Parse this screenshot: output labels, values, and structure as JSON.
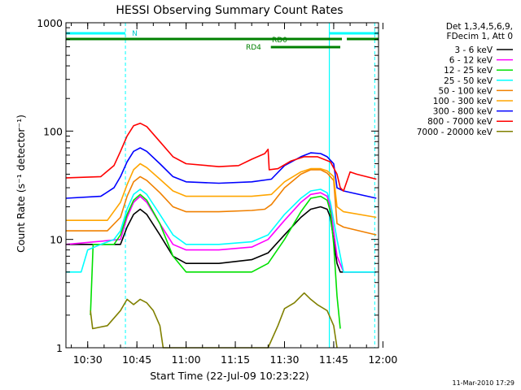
{
  "chart_data": {
    "type": "line",
    "title": "HESSI Observing Summary Count Rates",
    "xlabel": "Start Time (22-Jul-09 10:23:22)",
    "ylabel": "Count Rate (s⁻¹ detector⁻¹)",
    "y_scale": "log",
    "ylim": [
      1,
      1000
    ],
    "xlim": [
      "10:23:22",
      "11:58:40"
    ],
    "y_ticks": [
      {
        "value": 1,
        "label": "1"
      },
      {
        "value": 10,
        "label": "10"
      },
      {
        "value": 100,
        "label": "100"
      },
      {
        "value": 1000,
        "label": "1000"
      }
    ],
    "x_ticks": [
      {
        "value": "10:30",
        "label": "10:30"
      },
      {
        "value": "10:45",
        "label": "10:45"
      },
      {
        "value": "11:00",
        "label": "11:00"
      },
      {
        "value": "11:15",
        "label": "11:15"
      },
      {
        "value": "11:30",
        "label": "11:30"
      },
      {
        "value": "11:45",
        "label": "11:45"
      },
      {
        "value": "12:00",
        "label": "12:00"
      }
    ],
    "legend_header": [
      "Det 1,3,4,5,6,9,",
      "FDecim 1, Att 0"
    ],
    "legend_placement": "right",
    "series": [
      {
        "name": "3 - 6 keV",
        "color": "#000000",
        "points": [
          [
            "10:23:22",
            9
          ],
          [
            "10:40",
            9
          ],
          [
            "10:42",
            13
          ],
          [
            "10:44",
            17
          ],
          [
            "10:46",
            19
          ],
          [
            "10:48",
            17
          ],
          [
            "10:52",
            11
          ],
          [
            "10:56",
            7
          ],
          [
            "11:00",
            6
          ],
          [
            "11:05",
            6
          ],
          [
            "11:10",
            6
          ],
          [
            "11:20",
            6.5
          ],
          [
            "11:25",
            7.5
          ],
          [
            "11:30",
            11
          ],
          [
            "11:35",
            16
          ],
          [
            "11:38",
            19
          ],
          [
            "11:41",
            20
          ],
          [
            "11:43",
            19
          ],
          [
            "11:44",
            16
          ],
          [
            "11:46",
            6
          ],
          [
            "11:47",
            5
          ],
          [
            "11:48",
            5
          ],
          [
            "11:58",
            5
          ]
        ]
      },
      {
        "name": "6 - 12 keV",
        "color": "#ff00ff",
        "points": [
          [
            "10:23:22",
            9
          ],
          [
            "10:40",
            10
          ],
          [
            "10:42",
            16
          ],
          [
            "10:44",
            22
          ],
          [
            "10:46",
            25
          ],
          [
            "10:48",
            22
          ],
          [
            "10:52",
            14
          ],
          [
            "10:56",
            9
          ],
          [
            "11:00",
            8
          ],
          [
            "11:10",
            8
          ],
          [
            "11:20",
            8.5
          ],
          [
            "11:25",
            10
          ],
          [
            "11:30",
            15
          ],
          [
            "11:35",
            22
          ],
          [
            "11:38",
            26
          ],
          [
            "11:41",
            27
          ],
          [
            "11:43",
            25
          ],
          [
            "11:44",
            20
          ],
          [
            "11:46",
            7
          ],
          [
            "11:48",
            5
          ],
          [
            "11:58",
            5
          ]
        ]
      },
      {
        "name": "12 - 25 keV",
        "color": "#00e000",
        "points": [
          [
            "10:30:50",
            2
          ],
          [
            "10:31:40",
            9
          ],
          [
            "10:38",
            9
          ],
          [
            "10:40",
            11
          ],
          [
            "10:42",
            17
          ],
          [
            "10:44",
            23
          ],
          [
            "10:46",
            26
          ],
          [
            "10:48",
            23
          ],
          [
            "10:52",
            14
          ],
          [
            "10:56",
            7
          ],
          [
            "11:00",
            5
          ],
          [
            "11:10",
            5
          ],
          [
            "11:20",
            5
          ],
          [
            "11:25",
            6
          ],
          [
            "11:30",
            10
          ],
          [
            "11:35",
            18
          ],
          [
            "11:38",
            24
          ],
          [
            "11:41",
            25
          ],
          [
            "11:43",
            23
          ],
          [
            "11:44",
            18
          ],
          [
            "11:45",
            9
          ],
          [
            "11:46",
            3
          ],
          [
            "11:47",
            1.5
          ]
        ]
      },
      {
        "name": "25 - 50 keV",
        "color": "#00ffff",
        "points": [
          [
            "10:23:22",
            5
          ],
          [
            "10:28",
            5
          ],
          [
            "10:30",
            8
          ],
          [
            "10:34",
            9
          ],
          [
            "10:38",
            10
          ],
          [
            "10:40",
            12
          ],
          [
            "10:42",
            19
          ],
          [
            "10:44",
            26
          ],
          [
            "10:46",
            29
          ],
          [
            "10:48",
            26
          ],
          [
            "10:52",
            17
          ],
          [
            "10:56",
            11
          ],
          [
            "11:00",
            9
          ],
          [
            "11:10",
            9
          ],
          [
            "11:20",
            9.5
          ],
          [
            "11:25",
            11
          ],
          [
            "11:30",
            17
          ],
          [
            "11:35",
            24
          ],
          [
            "11:38",
            28
          ],
          [
            "11:41",
            29
          ],
          [
            "11:43",
            27
          ],
          [
            "11:44",
            22
          ],
          [
            "11:46",
            10
          ],
          [
            "11:48",
            5
          ],
          [
            "11:58",
            5
          ]
        ]
      },
      {
        "name": "50 - 100 keV",
        "color": "#f08000",
        "points": [
          [
            "10:23:22",
            12
          ],
          [
            "10:36",
            12
          ],
          [
            "10:40",
            16
          ],
          [
            "10:42",
            25
          ],
          [
            "10:44",
            34
          ],
          [
            "10:46",
            38
          ],
          [
            "10:48",
            35
          ],
          [
            "10:52",
            27
          ],
          [
            "10:56",
            20
          ],
          [
            "11:00",
            18
          ],
          [
            "11:10",
            18
          ],
          [
            "11:20",
            18.5
          ],
          [
            "11:24",
            19
          ],
          [
            "11:26",
            21
          ],
          [
            "11:30",
            30
          ],
          [
            "11:35",
            40
          ],
          [
            "11:38",
            44
          ],
          [
            "11:41",
            44
          ],
          [
            "11:43",
            41
          ],
          [
            "11:45",
            35
          ],
          [
            "11:46",
            14
          ],
          [
            "11:48",
            13
          ],
          [
            "11:58",
            11
          ]
        ]
      },
      {
        "name": "100 - 300 keV",
        "color": "#ffa500",
        "points": [
          [
            "10:23:22",
            15
          ],
          [
            "10:36",
            15
          ],
          [
            "10:40",
            22
          ],
          [
            "10:42",
            32
          ],
          [
            "10:44",
            44
          ],
          [
            "10:46",
            50
          ],
          [
            "10:48",
            46
          ],
          [
            "10:52",
            36
          ],
          [
            "10:56",
            28
          ],
          [
            "11:00",
            25
          ],
          [
            "11:10",
            25
          ],
          [
            "11:20",
            25
          ],
          [
            "11:26",
            26
          ],
          [
            "11:30",
            34
          ],
          [
            "11:35",
            42
          ],
          [
            "11:38",
            45
          ],
          [
            "11:41",
            45
          ],
          [
            "11:43",
            43
          ],
          [
            "11:45",
            38
          ],
          [
            "11:46",
            20
          ],
          [
            "11:48",
            18
          ],
          [
            "11:58",
            16
          ]
        ]
      },
      {
        "name": "300 - 800 keV",
        "color": "#0000ff",
        "points": [
          [
            "10:23:22",
            24
          ],
          [
            "10:34",
            25
          ],
          [
            "10:38",
            30
          ],
          [
            "10:40",
            38
          ],
          [
            "10:42",
            52
          ],
          [
            "10:44",
            65
          ],
          [
            "10:46",
            70
          ],
          [
            "10:48",
            65
          ],
          [
            "10:52",
            50
          ],
          [
            "10:56",
            38
          ],
          [
            "11:00",
            34
          ],
          [
            "11:10",
            33
          ],
          [
            "11:20",
            34
          ],
          [
            "11:26",
            36
          ],
          [
            "11:30",
            48
          ],
          [
            "11:35",
            58
          ],
          [
            "11:38",
            63
          ],
          [
            "11:41",
            62
          ],
          [
            "11:43",
            58
          ],
          [
            "11:45",
            50
          ],
          [
            "11:46",
            30
          ],
          [
            "11:48",
            28
          ],
          [
            "11:58",
            24
          ]
        ]
      },
      {
        "name": "800 - 7000 keV",
        "color": "#ff0000",
        "points": [
          [
            "10:23:22",
            37
          ],
          [
            "10:34",
            38
          ],
          [
            "10:38",
            48
          ],
          [
            "10:40",
            65
          ],
          [
            "10:42",
            90
          ],
          [
            "10:44",
            112
          ],
          [
            "10:46",
            118
          ],
          [
            "10:48",
            110
          ],
          [
            "10:52",
            80
          ],
          [
            "10:56",
            58
          ],
          [
            "11:00",
            50
          ],
          [
            "11:10",
            47
          ],
          [
            "11:16",
            48
          ],
          [
            "11:20",
            55
          ],
          [
            "11:24",
            62
          ],
          [
            "11:25",
            68
          ],
          [
            "11:25:20",
            44
          ],
          [
            "11:28",
            45
          ],
          [
            "11:32",
            53
          ],
          [
            "11:36",
            58
          ],
          [
            "11:40",
            58
          ],
          [
            "11:44",
            52
          ],
          [
            "11:46",
            40
          ],
          [
            "11:47",
            30
          ],
          [
            "11:48",
            28
          ],
          [
            "11:50",
            42
          ],
          [
            "11:52",
            40
          ],
          [
            "11:58",
            36
          ]
        ]
      },
      {
        "name": "7000 - 20000 keV",
        "color": "#808000",
        "points": [
          [
            "10:30:50",
            2.2
          ],
          [
            "10:31:30",
            1.5
          ],
          [
            "10:36",
            1.6
          ],
          [
            "10:40",
            2.2
          ],
          [
            "10:42",
            2.8
          ],
          [
            "10:44",
            2.5
          ],
          [
            "10:46",
            2.8
          ],
          [
            "10:48",
            2.6
          ],
          [
            "10:50",
            2.2
          ],
          [
            "10:52",
            1.6
          ],
          [
            "10:53",
            1.0
          ],
          [
            "11:25",
            1.0
          ],
          [
            "11:28",
            1.6
          ],
          [
            "11:30",
            2.3
          ],
          [
            "11:33",
            2.6
          ],
          [
            "11:36",
            3.2
          ],
          [
            "11:38",
            2.8
          ],
          [
            "11:40",
            2.5
          ],
          [
            "11:43",
            2.2
          ],
          [
            "11:45",
            1.6
          ],
          [
            "11:46",
            1.0
          ]
        ]
      }
    ],
    "annotations": {
      "attenuator_label": "N",
      "ratemeter_labels": [
        "RD0",
        "RD4"
      ],
      "vertical_markers": [
        "10:41:30",
        "11:43:40",
        "11:57:30"
      ]
    }
  },
  "footer_timestamp": "11-Mar-2010 17:29"
}
